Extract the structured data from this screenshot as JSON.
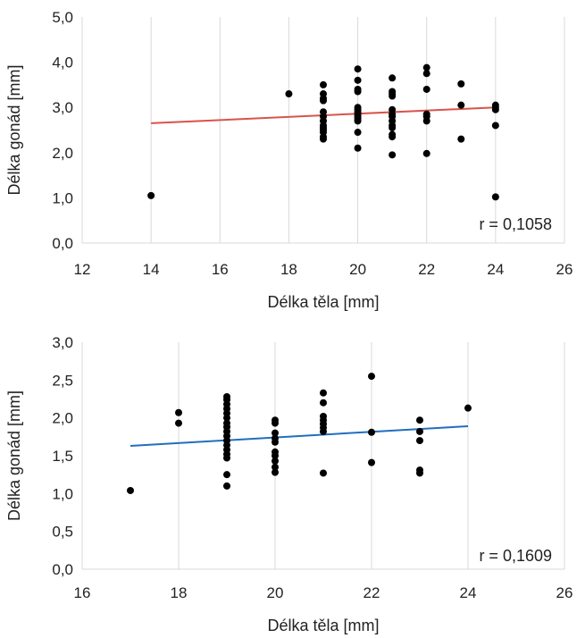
{
  "chart_data": [
    {
      "type": "scatter",
      "title": "",
      "xlabel": "Délka těla [mm]",
      "ylabel": "Délka gonád [mm]",
      "xlim": [
        12,
        26
      ],
      "ylim": [
        0,
        5
      ],
      "x_ticks": [
        "12",
        "14",
        "16",
        "18",
        "20",
        "22",
        "24",
        "26"
      ],
      "y_ticks": [
        "0,0",
        "1,0",
        "2,0",
        "3,0",
        "4,0",
        "5,0"
      ],
      "grid": "vertical",
      "point_color": "#000000",
      "trend_color": "#d9534a",
      "trendline": {
        "x": [
          14,
          24
        ],
        "y": [
          2.65,
          3.0
        ]
      },
      "annotation": "r = 0,1058",
      "points": [
        [
          14,
          1.05
        ],
        [
          18,
          3.3
        ],
        [
          19,
          3.5
        ],
        [
          19,
          3.3
        ],
        [
          19,
          3.2
        ],
        [
          19,
          3.15
        ],
        [
          19,
          2.9
        ],
        [
          19,
          2.8
        ],
        [
          19,
          2.7
        ],
        [
          19,
          2.6
        ],
        [
          19,
          2.55
        ],
        [
          19,
          2.5
        ],
        [
          19,
          2.45
        ],
        [
          19,
          2.35
        ],
        [
          19,
          2.3
        ],
        [
          20,
          3.85
        ],
        [
          20,
          3.6
        ],
        [
          20,
          3.4
        ],
        [
          20,
          3.35
        ],
        [
          20,
          3.0
        ],
        [
          20,
          2.95
        ],
        [
          20,
          2.9
        ],
        [
          20,
          2.85
        ],
        [
          20,
          2.8
        ],
        [
          20,
          2.75
        ],
        [
          20,
          2.7
        ],
        [
          20,
          2.45
        ],
        [
          20,
          2.1
        ],
        [
          21,
          3.65
        ],
        [
          21,
          3.35
        ],
        [
          21,
          3.3
        ],
        [
          21,
          3.25
        ],
        [
          21,
          2.95
        ],
        [
          21,
          2.85
        ],
        [
          21,
          2.8
        ],
        [
          21,
          2.7
        ],
        [
          21,
          2.6
        ],
        [
          21,
          2.55
        ],
        [
          21,
          2.4
        ],
        [
          21,
          2.35
        ],
        [
          21,
          1.95
        ],
        [
          22,
          3.88
        ],
        [
          22,
          3.75
        ],
        [
          22,
          3.4
        ],
        [
          22,
          2.85
        ],
        [
          22,
          2.8
        ],
        [
          22,
          2.7
        ],
        [
          22,
          1.98
        ],
        [
          23,
          3.52
        ],
        [
          23,
          3.05
        ],
        [
          23,
          2.3
        ],
        [
          24,
          3.05
        ],
        [
          24,
          3.0
        ],
        [
          24,
          2.95
        ],
        [
          24,
          2.6
        ],
        [
          24,
          1.02
        ]
      ]
    },
    {
      "type": "scatter",
      "title": "",
      "xlabel": "Délka těla [mm]",
      "ylabel": "Délka gonád [mm]",
      "xlim": [
        16,
        26
      ],
      "ylim": [
        0,
        3
      ],
      "x_ticks": [
        "16",
        "18",
        "20",
        "22",
        "24",
        "26"
      ],
      "y_ticks": [
        "0,0",
        "0,5",
        "1,0",
        "1,5",
        "2,0",
        "2,5",
        "3,0"
      ],
      "grid": "vertical",
      "point_color": "#000000",
      "trend_color": "#1f6fbf",
      "trendline": {
        "x": [
          17,
          24
        ],
        "y": [
          1.63,
          1.89
        ]
      },
      "annotation": "r = 0,1609",
      "points": [
        [
          17,
          1.04
        ],
        [
          18,
          2.07
        ],
        [
          18,
          1.93
        ],
        [
          19,
          2.28
        ],
        [
          19,
          2.24
        ],
        [
          19,
          2.18
        ],
        [
          19,
          2.12
        ],
        [
          19,
          2.06
        ],
        [
          19,
          2.0
        ],
        [
          19,
          1.93
        ],
        [
          19,
          1.88
        ],
        [
          19,
          1.82
        ],
        [
          19,
          1.76
        ],
        [
          19,
          1.7
        ],
        [
          19,
          1.64
        ],
        [
          19,
          1.58
        ],
        [
          19,
          1.52
        ],
        [
          19,
          1.47
        ],
        [
          19,
          1.25
        ],
        [
          19,
          1.1
        ],
        [
          20,
          1.97
        ],
        [
          20,
          1.93
        ],
        [
          20,
          1.8
        ],
        [
          20,
          1.73
        ],
        [
          20,
          1.68
        ],
        [
          20,
          1.55
        ],
        [
          20,
          1.5
        ],
        [
          20,
          1.43
        ],
        [
          20,
          1.35
        ],
        [
          20,
          1.28
        ],
        [
          21,
          2.33
        ],
        [
          21,
          2.2
        ],
        [
          21,
          2.02
        ],
        [
          21,
          1.97
        ],
        [
          21,
          1.92
        ],
        [
          21,
          1.87
        ],
        [
          21,
          1.82
        ],
        [
          21,
          1.27
        ],
        [
          22,
          2.55
        ],
        [
          22,
          1.81
        ],
        [
          22,
          1.41
        ],
        [
          23,
          1.97
        ],
        [
          23,
          1.82
        ],
        [
          23,
          1.7
        ],
        [
          23,
          1.31
        ],
        [
          23,
          1.27
        ],
        [
          24,
          2.13
        ]
      ]
    }
  ]
}
